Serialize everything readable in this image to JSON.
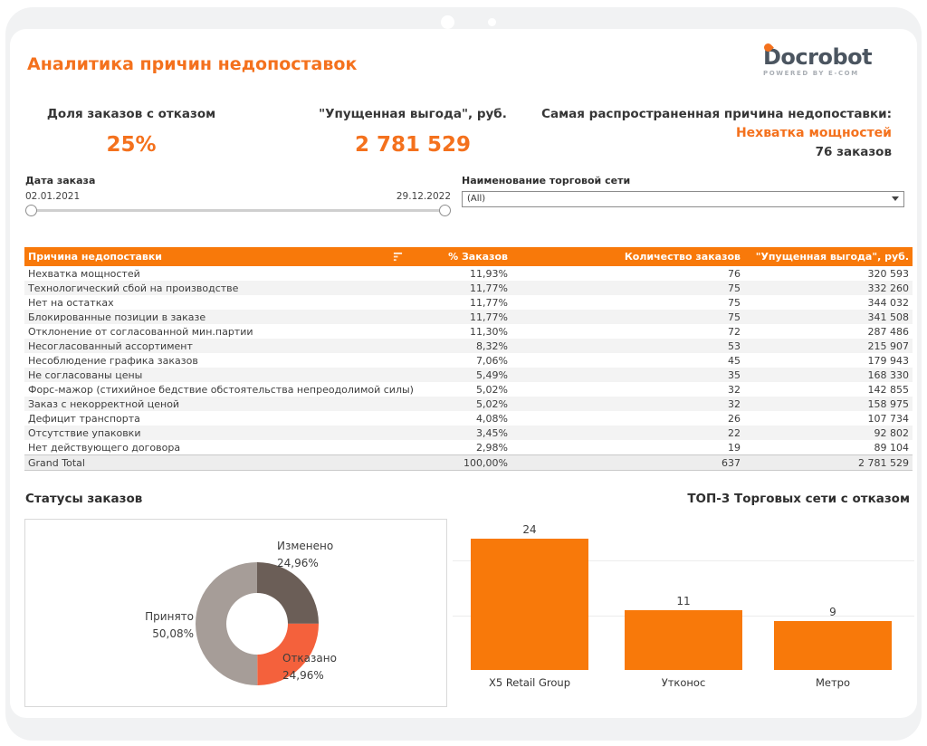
{
  "header": {
    "title": "Аналитика причин недопоставок",
    "logo_text": "Docrobot",
    "logo_tagline": "POWERED BY E-COM"
  },
  "kpis": [
    {
      "label": "Доля заказов с отказом",
      "value": "25%"
    },
    {
      "label": "\"Упущенная выгода\", руб.",
      "value": "2 781 529"
    },
    {
      "label": "Самая распространенная причина недопоставки:",
      "value": "Нехватка мощностей",
      "sub_value": "76 заказов"
    }
  ],
  "filters": {
    "date": {
      "label": "Дата заказа",
      "start": "02.01.2021",
      "end": "29.12.2022"
    },
    "retail_network": {
      "label": "Наименование торговой сети",
      "selected": "(All)"
    }
  },
  "table": {
    "columns": [
      "Причина недопоставки",
      "% Заказов",
      "Количество заказов",
      "\"Упущенная выгода\", руб."
    ],
    "rows": [
      [
        "Нехватка мощностей",
        "11,93%",
        "76",
        "320 593"
      ],
      [
        "Технологический сбой на производстве",
        "11,77%",
        "75",
        "332 260"
      ],
      [
        "Нет на остатках",
        "11,77%",
        "75",
        "344 032"
      ],
      [
        "Блокированные позиции в заказе",
        "11,77%",
        "75",
        "341 508"
      ],
      [
        "Отклонение от согласованной мин.партии",
        "11,30%",
        "72",
        "287 486"
      ],
      [
        "Несогласованный ассортимент",
        "8,32%",
        "53",
        "215 907"
      ],
      [
        "Несоблюдение графика заказов",
        "7,06%",
        "45",
        "179 943"
      ],
      [
        "Не согласованы цены",
        "5,49%",
        "35",
        "168 330"
      ],
      [
        "Форс-мажор (стихийное бедствие обстоятельства непреодолимой силы)",
        "5,02%",
        "32",
        "142 855"
      ],
      [
        "Заказ с некорректной ценой",
        "5,02%",
        "32",
        "158 975"
      ],
      [
        "Дефицит транспорта",
        "4,08%",
        "26",
        "107 734"
      ],
      [
        "Отсутствие упаковки",
        "3,45%",
        "22",
        "92 802"
      ],
      [
        "Нет действующего договора",
        "2,98%",
        "19",
        "89 104"
      ]
    ],
    "grand_total": [
      "Grand Total",
      "100,00%",
      "637",
      "2 781 529"
    ]
  },
  "sections": {
    "statuses_title": "Статусы заказов",
    "top3_title": "ТОП-3 Торговых сети с отказом"
  },
  "chart_data": [
    {
      "type": "pie",
      "variant": "donut",
      "title": "Статусы заказов",
      "labels": [
        "Изменено",
        "Отказано",
        "Принято"
      ],
      "values": [
        24.96,
        24.96,
        50.08
      ],
      "display_values": [
        "24,96%",
        "24,96%",
        "50,08%"
      ],
      "colors": [
        "#6b5e57",
        "#f4613c",
        "#a69d98"
      ],
      "start_angle_deg": 0,
      "direction": "clockwise",
      "legend_position": "callout-labels"
    },
    {
      "type": "bar",
      "title": "ТОП-3 Торговых сети с отказом",
      "categories": [
        "X5 Retail Group",
        "Утконос",
        "Метро"
      ],
      "values": [
        24,
        11,
        9
      ],
      "bar_color": "#f8790a",
      "ylim": [
        0,
        26
      ],
      "gridline_values": [
        10,
        20
      ],
      "grid": true,
      "legend": false,
      "data_labels": true
    }
  ],
  "colors": {
    "accent_orange": "#f4711d",
    "fill_orange": "#f8790a",
    "donut_changed": "#6b5e57",
    "donut_rejected": "#f4613c",
    "donut_accepted": "#a69d98"
  }
}
